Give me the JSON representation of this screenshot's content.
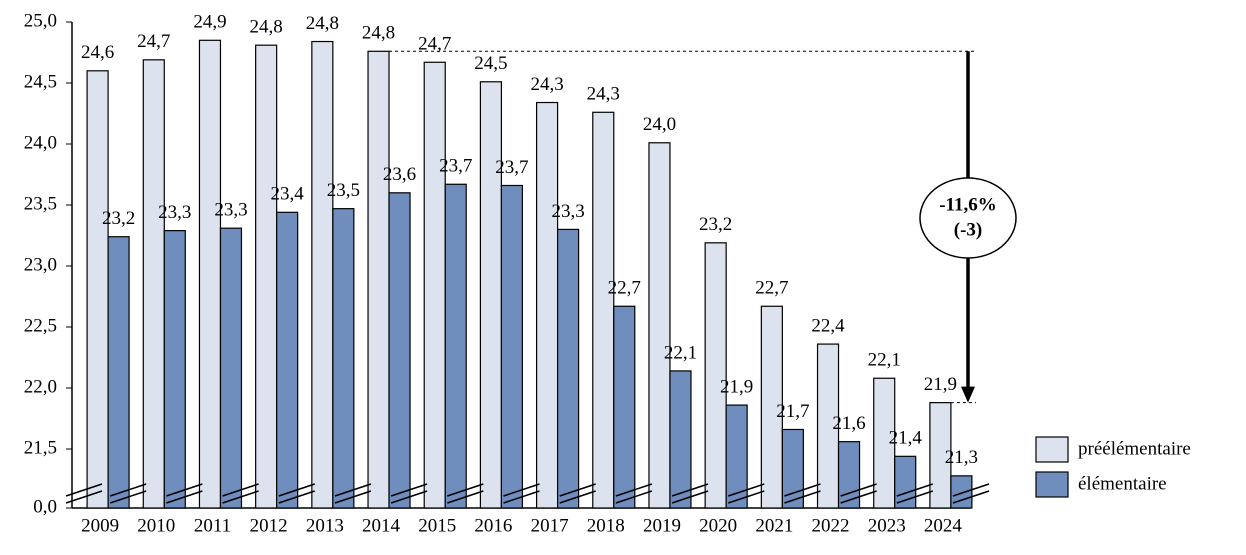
{
  "chart_data": {
    "type": "bar",
    "categories": [
      "2009",
      "2010",
      "2011",
      "2012",
      "2013",
      "2014",
      "2015",
      "2016",
      "2017",
      "2018",
      "2019",
      "2020",
      "2021",
      "2022",
      "2023",
      "2024"
    ],
    "series": [
      {
        "name": "préélémentaire",
        "color": "#dce3ef",
        "values": [
          24.6,
          24.69,
          24.85,
          24.81,
          24.84,
          24.76,
          24.67,
          24.51,
          24.34,
          24.26,
          24.01,
          23.19,
          22.67,
          22.36,
          22.08,
          21.88
        ],
        "value_labels": [
          "24,6",
          "24,7",
          "24,9",
          "24,8",
          "24,8",
          "24,8",
          "24,7",
          "24,5",
          "24,3",
          "24,3",
          "24,0",
          "23,2",
          "22,7",
          "22,4",
          "22,1",
          "21,9"
        ]
      },
      {
        "name": "élémentaire",
        "color": "#6f8dbd",
        "values": [
          23.24,
          23.29,
          23.31,
          23.44,
          23.47,
          23.6,
          23.67,
          23.66,
          23.3,
          22.67,
          22.14,
          21.86,
          21.66,
          21.56,
          21.44,
          21.28
        ],
        "value_labels": [
          "23,2",
          "23,3",
          "23,3",
          "23,4",
          "23,5",
          "23,6",
          "23,7",
          "23,7",
          "23,3",
          "22,7",
          "22,1",
          "21,9",
          "21,7",
          "21,6",
          "21,4",
          "21,3"
        ]
      }
    ],
    "ylim": [
      0,
      25
    ],
    "axis_break": [
      0,
      21
    ],
    "yticks": [
      {
        "value": 0,
        "label": "0,0"
      },
      {
        "value": 21.5,
        "label": "21,5"
      },
      {
        "value": 22,
        "label": "22,0"
      },
      {
        "value": 22.5,
        "label": "22,5"
      },
      {
        "value": 23,
        "label": "23,0"
      },
      {
        "value": 23.5,
        "label": "23,5"
      },
      {
        "value": 24,
        "label": "24,0"
      },
      {
        "value": 24.5,
        "label": "24,5"
      },
      {
        "value": 25,
        "label": "25,0"
      }
    ],
    "annotation": [
      "-11,6%",
      "(-3)"
    ],
    "legend": "right"
  }
}
